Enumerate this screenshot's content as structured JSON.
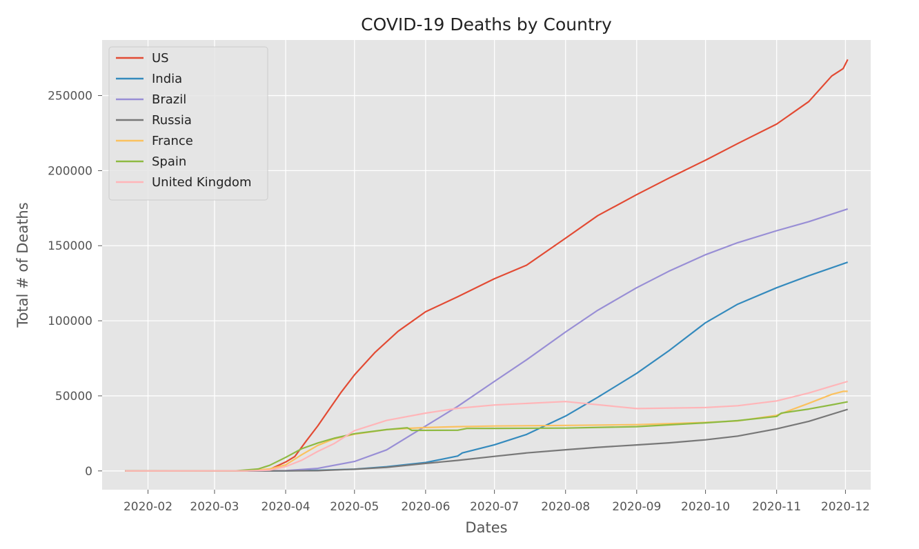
{
  "chart_data": {
    "type": "line",
    "title": "COVID-19 Deaths by Country",
    "xlabel": "Dates",
    "ylabel": "Total # of Deaths",
    "ylim": [
      -12500,
      287000
    ],
    "xlim": [
      "2020-01-12",
      "2020-12-12"
    ],
    "yticks": [
      0,
      50000,
      100000,
      150000,
      200000,
      250000
    ],
    "xticks": [
      "2020-02",
      "2020-03",
      "2020-04",
      "2020-05",
      "2020-06",
      "2020-07",
      "2020-08",
      "2020-09",
      "2020-10",
      "2020-11",
      "2020-12"
    ],
    "grid": true,
    "legend_position": "upper-left",
    "background": "#e5e5e5",
    "series": [
      {
        "name": "US",
        "color": "#e24a33",
        "points": [
          [
            "2020-01-22",
            0
          ],
          [
            "2020-03-10",
            30
          ],
          [
            "2020-03-20",
            300
          ],
          [
            "2020-03-25",
            1000
          ],
          [
            "2020-04-01",
            5900
          ],
          [
            "2020-04-05",
            9600
          ],
          [
            "2020-04-10",
            20000
          ],
          [
            "2020-04-15",
            30000
          ],
          [
            "2020-04-20",
            41000
          ],
          [
            "2020-04-25",
            52000
          ],
          [
            "2020-05-01",
            64000
          ],
          [
            "2020-05-10",
            79000
          ],
          [
            "2020-05-20",
            93000
          ],
          [
            "2020-06-01",
            106000
          ],
          [
            "2020-06-15",
            116000
          ],
          [
            "2020-07-01",
            128000
          ],
          [
            "2020-07-15",
            137000
          ],
          [
            "2020-08-01",
            155000
          ],
          [
            "2020-08-15",
            170000
          ],
          [
            "2020-09-01",
            184000
          ],
          [
            "2020-09-15",
            195000
          ],
          [
            "2020-10-01",
            207000
          ],
          [
            "2020-10-15",
            218000
          ],
          [
            "2020-11-01",
            231000
          ],
          [
            "2020-11-15",
            246000
          ],
          [
            "2020-11-25",
            263000
          ],
          [
            "2020-11-30",
            268000
          ],
          [
            "2020-12-02",
            274000
          ]
        ]
      },
      {
        "name": "India",
        "color": "#348abd",
        "points": [
          [
            "2020-01-22",
            0
          ],
          [
            "2020-04-01",
            50
          ],
          [
            "2020-04-15",
            400
          ],
          [
            "2020-05-01",
            1200
          ],
          [
            "2020-05-15",
            2800
          ],
          [
            "2020-06-01",
            5600
          ],
          [
            "2020-06-15",
            9900
          ],
          [
            "2020-06-17",
            12000
          ],
          [
            "2020-07-01",
            17400
          ],
          [
            "2020-07-15",
            24300
          ],
          [
            "2020-08-01",
            36500
          ],
          [
            "2020-08-15",
            49000
          ],
          [
            "2020-09-01",
            65000
          ],
          [
            "2020-09-15",
            80000
          ],
          [
            "2020-10-01",
            98700
          ],
          [
            "2020-10-15",
            111000
          ],
          [
            "2020-11-01",
            122000
          ],
          [
            "2020-11-15",
            130000
          ],
          [
            "2020-12-02",
            139000
          ]
        ]
      },
      {
        "name": "Brazil",
        "color": "#988ed5",
        "points": [
          [
            "2020-01-22",
            0
          ],
          [
            "2020-03-20",
            10
          ],
          [
            "2020-04-01",
            240
          ],
          [
            "2020-04-15",
            1700
          ],
          [
            "2020-05-01",
            6300
          ],
          [
            "2020-05-15",
            14000
          ],
          [
            "2020-06-01",
            29900
          ],
          [
            "2020-06-15",
            43000
          ],
          [
            "2020-07-01",
            59600
          ],
          [
            "2020-07-15",
            74000
          ],
          [
            "2020-08-01",
            92500
          ],
          [
            "2020-08-15",
            107000
          ],
          [
            "2020-09-01",
            122000
          ],
          [
            "2020-09-15",
            133000
          ],
          [
            "2020-10-01",
            144000
          ],
          [
            "2020-10-15",
            152000
          ],
          [
            "2020-11-01",
            160000
          ],
          [
            "2020-11-15",
            166000
          ],
          [
            "2020-12-02",
            174500
          ]
        ]
      },
      {
        "name": "Russia",
        "color": "#777777",
        "points": [
          [
            "2020-01-22",
            0
          ],
          [
            "2020-04-01",
            20
          ],
          [
            "2020-04-15",
            200
          ],
          [
            "2020-05-01",
            1100
          ],
          [
            "2020-05-15",
            2400
          ],
          [
            "2020-06-01",
            5000
          ],
          [
            "2020-06-15",
            7000
          ],
          [
            "2020-07-01",
            9700
          ],
          [
            "2020-07-15",
            12000
          ],
          [
            "2020-08-01",
            14100
          ],
          [
            "2020-08-15",
            15700
          ],
          [
            "2020-09-01",
            17300
          ],
          [
            "2020-09-15",
            18700
          ],
          [
            "2020-10-01",
            20700
          ],
          [
            "2020-10-15",
            23200
          ],
          [
            "2020-11-01",
            28000
          ],
          [
            "2020-11-15",
            33000
          ],
          [
            "2020-12-02",
            41000
          ]
        ]
      },
      {
        "name": "France",
        "color": "#fbc15e",
        "points": [
          [
            "2020-01-22",
            0
          ],
          [
            "2020-03-15",
            100
          ],
          [
            "2020-03-25",
            1300
          ],
          [
            "2020-04-01",
            4000
          ],
          [
            "2020-04-08",
            10800
          ],
          [
            "2020-04-15",
            17000
          ],
          [
            "2020-04-22",
            21300
          ],
          [
            "2020-05-01",
            24500
          ],
          [
            "2020-05-15",
            27500
          ],
          [
            "2020-05-25",
            28400
          ],
          [
            "2020-06-01",
            28900
          ],
          [
            "2020-06-15",
            29500
          ],
          [
            "2020-07-01",
            29900
          ],
          [
            "2020-08-01",
            30300
          ],
          [
            "2020-09-01",
            30800
          ],
          [
            "2020-10-01",
            32300
          ],
          [
            "2020-10-15",
            33300
          ],
          [
            "2020-11-01",
            37000
          ],
          [
            "2020-11-15",
            45000
          ],
          [
            "2020-11-25",
            51000
          ],
          [
            "2020-11-30",
            53000
          ],
          [
            "2020-12-02",
            53000
          ]
        ]
      },
      {
        "name": "Spain",
        "color": "#8eba42",
        "points": [
          [
            "2020-01-22",
            0
          ],
          [
            "2020-03-10",
            30
          ],
          [
            "2020-03-20",
            1300
          ],
          [
            "2020-03-25",
            3700
          ],
          [
            "2020-04-01",
            9000
          ],
          [
            "2020-04-08",
            14800
          ],
          [
            "2020-04-15",
            18600
          ],
          [
            "2020-04-22",
            21700
          ],
          [
            "2020-05-01",
            24800
          ],
          [
            "2020-05-15",
            27500
          ],
          [
            "2020-05-24",
            28750
          ],
          [
            "2020-05-26",
            27000
          ],
          [
            "2020-06-15",
            27100
          ],
          [
            "2020-06-19",
            28300
          ],
          [
            "2020-07-01",
            28350
          ],
          [
            "2020-08-01",
            28500
          ],
          [
            "2020-09-01",
            29500
          ],
          [
            "2020-10-01",
            32000
          ],
          [
            "2020-10-15",
            33500
          ],
          [
            "2020-11-01",
            36300
          ],
          [
            "2020-11-03",
            38500
          ],
          [
            "2020-11-15",
            41200
          ],
          [
            "2020-11-25",
            44000
          ],
          [
            "2020-12-02",
            46000
          ]
        ]
      },
      {
        "name": "United Kingdom",
        "color": "#ffb5b8",
        "points": [
          [
            "2020-01-22",
            0
          ],
          [
            "2020-03-15",
            50
          ],
          [
            "2020-03-25",
            500
          ],
          [
            "2020-04-01",
            2900
          ],
          [
            "2020-04-08",
            7100
          ],
          [
            "2020-04-15",
            13000
          ],
          [
            "2020-04-22",
            18100
          ],
          [
            "2020-05-01",
            26800
          ],
          [
            "2020-05-15",
            33600
          ],
          [
            "2020-06-01",
            38500
          ],
          [
            "2020-06-15",
            41700
          ],
          [
            "2020-07-01",
            43900
          ],
          [
            "2020-08-01",
            46200
          ],
          [
            "2020-09-01",
            41500
          ],
          [
            "2020-10-01",
            42200
          ],
          [
            "2020-10-15",
            43400
          ],
          [
            "2020-11-01",
            46600
          ],
          [
            "2020-11-15",
            51900
          ],
          [
            "2020-11-25",
            56500
          ],
          [
            "2020-12-02",
            59600
          ]
        ]
      }
    ]
  }
}
